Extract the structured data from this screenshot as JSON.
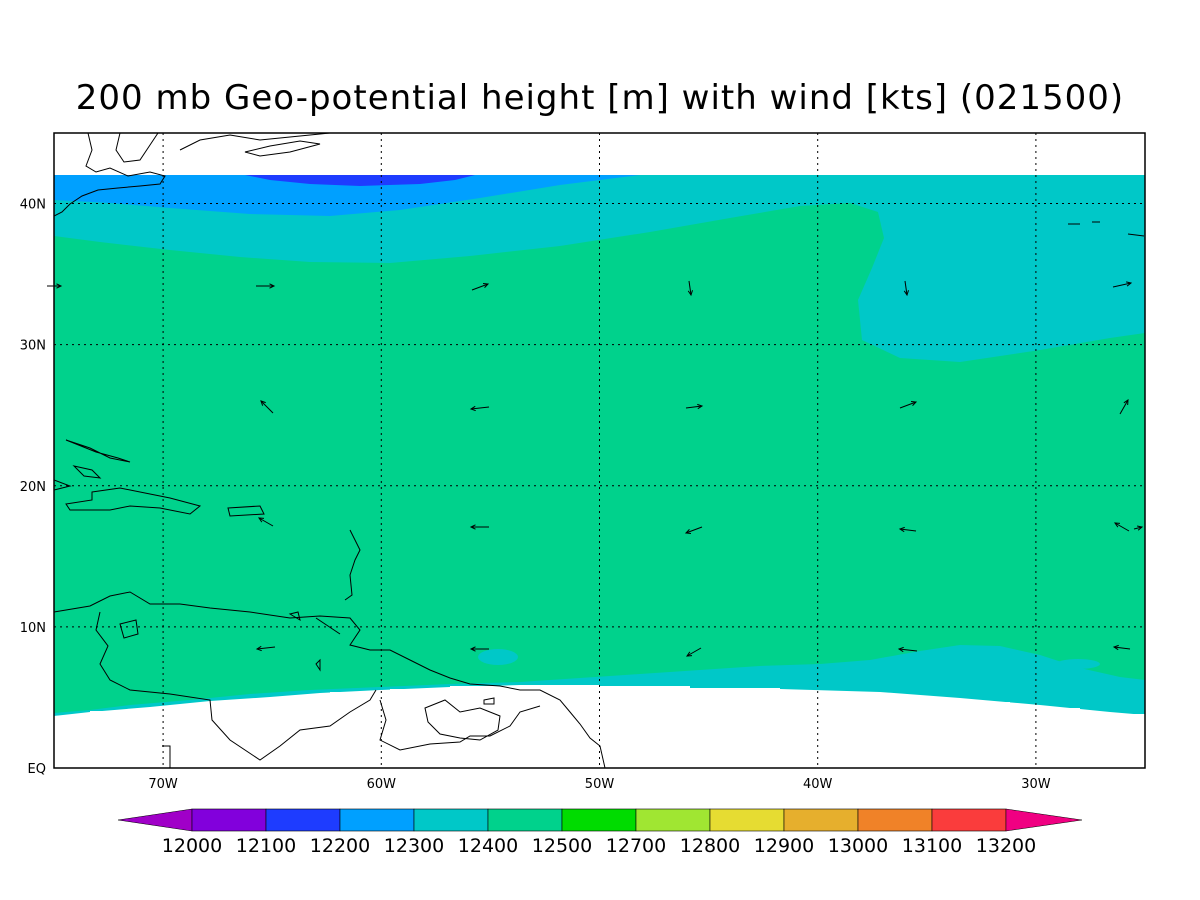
{
  "title": "200 mb Geo-potential height [m] with wind [kts] (021500)",
  "axes": {
    "x_ticks": [
      "70W",
      "60W",
      "50W",
      "40W",
      "30W"
    ],
    "y_ticks": [
      "EQ",
      "10N",
      "20N",
      "30N",
      "40N"
    ],
    "lon_range": [
      -75,
      -25
    ],
    "lat_range": [
      0,
      45
    ],
    "grid": true
  },
  "colorbar": {
    "levels": [
      "12000",
      "12100",
      "12200",
      "12300",
      "12400",
      "12500",
      "12700",
      "12800",
      "12900",
      "13000",
      "13100",
      "13200"
    ],
    "colors": [
      "#a000c8",
      "#8200dc",
      "#1e3cff",
      "#00a0ff",
      "#00c8c8",
      "#00d28c",
      "#00dc00",
      "#a0e632",
      "#e6dc32",
      "#e6af2d",
      "#f08228",
      "#fa3c3c",
      "#f00082"
    ]
  },
  "chart_data": {
    "type": "heatmap",
    "title": "200 mb Geo-potential height [m] with wind [kts] (021500)",
    "xlabel": "",
    "ylabel": "",
    "xlim": [
      -75,
      -25
    ],
    "ylim": [
      0,
      45
    ],
    "fields": [
      {
        "level": "12200",
        "color": "#1e3cff",
        "region": "narrow band near 42N between 65W and 56W"
      },
      {
        "level": "12300",
        "color": "#00a0ff",
        "region": "band 39N–42N north edge"
      },
      {
        "level": "12400",
        "color": "#00c8c8",
        "region": "north 36N–42N, northeast corner east of 37W, southern edge 4N–8N"
      },
      {
        "level": "12500",
        "color": "#00d28c",
        "region": "most of domain 6N–38N"
      }
    ],
    "wind_vectors_present": true
  }
}
